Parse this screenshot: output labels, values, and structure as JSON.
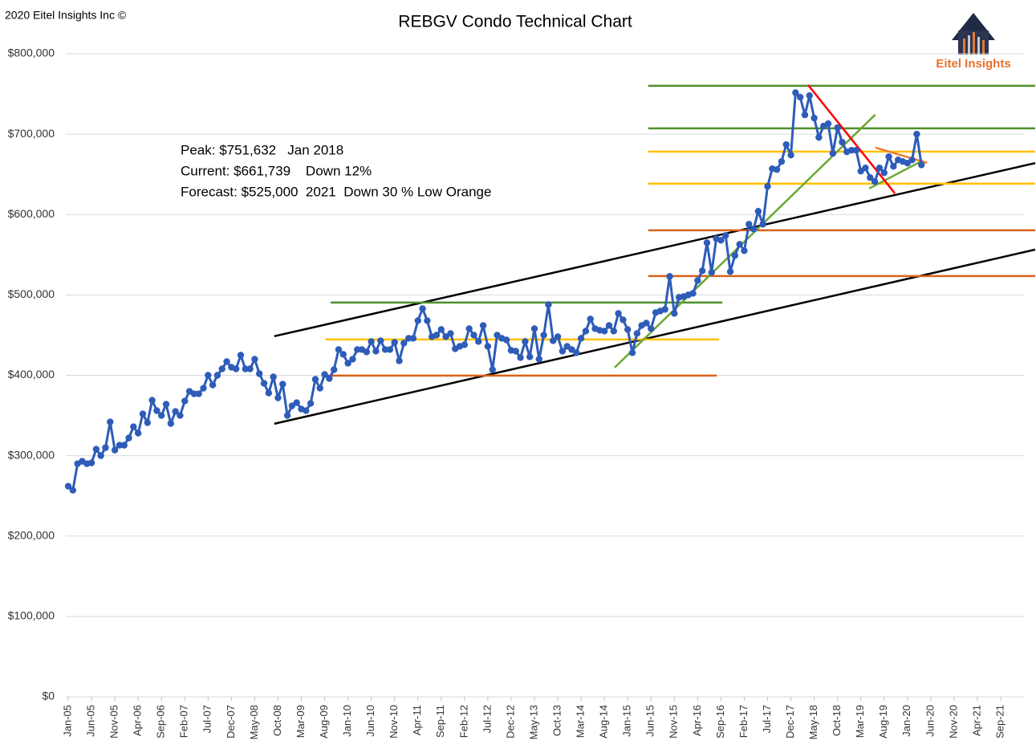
{
  "chart_data": {
    "type": "line",
    "title": "REBGV Condo Technical Chart",
    "copyright": "2020 Eitel Insights Inc ©",
    "brand": "Eitel Insights",
    "notes": [
      "Peak: $751,632   Jan 2018",
      "Current: $661,739    Down 12%",
      "Forecast: $525,000  2021  Down 30 % Low Orange"
    ],
    "categories": [
      "Jan-05",
      null,
      null,
      null,
      null,
      "Jun-05",
      null,
      null,
      null,
      null,
      "Nov-05",
      null,
      null,
      null,
      null,
      "Apr-06",
      null,
      null,
      null,
      null,
      "Sep-06",
      null,
      null,
      null,
      null,
      "Feb-07",
      null,
      null,
      null,
      null,
      "Jul-07",
      null,
      null,
      null,
      null,
      "Dec-07",
      null,
      null,
      null,
      null,
      "May-08",
      null,
      null,
      null,
      null,
      "Oct-08",
      null,
      null,
      null,
      null,
      "Mar-09",
      null,
      null,
      null,
      null,
      "Aug-09",
      null,
      null,
      null,
      null,
      "Jan-10",
      null,
      null,
      null,
      null,
      "Jun-10",
      null,
      null,
      null,
      null,
      "Nov-10",
      null,
      null,
      null,
      null,
      "Apr-11",
      null,
      null,
      null,
      null,
      "Sep-11",
      null,
      null,
      null,
      null,
      "Feb-12",
      null,
      null,
      null,
      null,
      "Jul-12",
      null,
      null,
      null,
      null,
      "Dec-12",
      null,
      null,
      null,
      null,
      "May-13",
      null,
      null,
      null,
      null,
      "Oct-13",
      null,
      null,
      null,
      null,
      "Mar-14",
      null,
      null,
      null,
      null,
      "Aug-14",
      null,
      null,
      null,
      null,
      "Jan-15",
      null,
      null,
      null,
      null,
      "Jun-15",
      null,
      null,
      null,
      null,
      "Nov-15",
      null,
      null,
      null,
      null,
      "Apr-16",
      null,
      null,
      null,
      null,
      "Sep-16",
      null,
      null,
      null,
      null,
      "Feb-17",
      null,
      null,
      null,
      null,
      "Jul-17",
      null,
      null,
      null,
      null,
      "Dec-17",
      null,
      null,
      null,
      null,
      "May-18",
      null,
      null,
      null,
      null,
      "Oct-18",
      null,
      null,
      null,
      null,
      "Mar-19",
      null,
      null,
      null,
      null,
      "Aug-19",
      null,
      null,
      null,
      null,
      "Jan-20",
      null,
      null,
      null,
      null,
      "Jun-20",
      null,
      null,
      null,
      null,
      "Nov-20",
      null,
      null,
      null,
      null,
      "Apr-21",
      null,
      null,
      null,
      null,
      "Sep-21",
      null,
      null,
      null,
      null,
      null
    ],
    "series": [
      {
        "color": "#2e5cb8",
        "values": [
          262000,
          257000,
          290000,
          293000,
          290000,
          291000,
          308000,
          300000,
          310000,
          342000,
          307000,
          313000,
          313000,
          322000,
          336000,
          328000,
          352000,
          341000,
          369000,
          356000,
          350000,
          364000,
          340000,
          355000,
          350000,
          368000,
          380000,
          377000,
          377000,
          384000,
          400000,
          388000,
          400000,
          408000,
          417000,
          410000,
          408000,
          425000,
          408000,
          408000,
          420000,
          402000,
          390000,
          378000,
          398000,
          372000,
          389000,
          350000,
          362000,
          366000,
          358000,
          356000,
          365000,
          395000,
          384000,
          401000,
          396000,
          407000,
          432000,
          426000,
          415000,
          420000,
          432000,
          432000,
          429000,
          442000,
          430000,
          443000,
          432000,
          432000,
          441000,
          418000,
          440000,
          446000,
          446000,
          468000,
          483000,
          468000,
          448000,
          450000,
          457000,
          448000,
          452000,
          433000,
          436000,
          438000,
          458000,
          450000,
          442000,
          462000,
          436000,
          407000,
          450000,
          446000,
          444000,
          431000,
          430000,
          422000,
          442000,
          423000,
          458000,
          420000,
          450000,
          488000,
          443000,
          448000,
          430000,
          436000,
          432000,
          428000,
          446000,
          455000,
          470000,
          458000,
          456000,
          455000,
          462000,
          455000,
          477000,
          469000,
          457000,
          428000,
          452000,
          462000,
          465000,
          458000,
          478000,
          480000,
          482000,
          523000,
          477000,
          497000,
          498000,
          500000,
          502000,
          518000,
          530000,
          565000,
          528000,
          570000,
          568000,
          574000,
          529000,
          549000,
          563000,
          555000,
          588000,
          582000,
          604000,
          588000,
          635000,
          657000,
          656000,
          666000,
          687000,
          674000,
          751632,
          746000,
          724000,
          748000,
          720000,
          696000,
          710000,
          713000,
          676000,
          708000,
          690000,
          678000,
          680000,
          680000,
          654000,
          658000,
          646000,
          641000,
          658000,
          652000,
          672000,
          660000,
          668000,
          666000,
          664000,
          668000,
          700000,
          661739,
          null,
          null,
          null,
          null,
          null,
          null,
          null,
          null,
          null,
          null,
          null,
          null,
          null,
          null,
          null,
          null,
          null,
          null,
          null,
          null,
          null,
          null
        ]
      }
    ],
    "reference_lines": [
      {
        "color": "#000000",
        "x": [
          44.2,
          207.4
        ],
        "y": [
          448600,
          664000
        ]
      },
      {
        "color": "#000000",
        "x": [
          44.2,
          207.4
        ],
        "y": [
          339700,
          556400
        ]
      },
      {
        "color": "#4e8f2a",
        "x": [
          56.3,
          140.3
        ],
        "y": [
          490500,
          490500
        ]
      },
      {
        "color": "#ffc000",
        "x": [
          55.2,
          139.6
        ],
        "y": [
          444600,
          444600
        ]
      },
      {
        "color": "#d9621b",
        "x": [
          55.2,
          139.1
        ],
        "y": [
          399600,
          399600
        ]
      },
      {
        "color": "#4e8f2a",
        "x": [
          124.4,
          207.4
        ],
        "y": [
          760200,
          760200
        ]
      },
      {
        "color": "#4e8f2a",
        "x": [
          124.4,
          207.4
        ],
        "y": [
          707300,
          707300
        ]
      },
      {
        "color": "#ffc000",
        "x": [
          124.4,
          207.4
        ],
        "y": [
          678300,
          678300
        ]
      },
      {
        "color": "#ffc000",
        "x": [
          124.4,
          207.4
        ],
        "y": [
          638400,
          638400
        ]
      },
      {
        "color": "#d9621b",
        "x": [
          124.4,
          207.4
        ],
        "y": [
          580400,
          580400
        ]
      },
      {
        "color": "#d9621b",
        "x": [
          124.4,
          207.4
        ],
        "y": [
          523500,
          523500
        ]
      },
      {
        "color": "#6aa832",
        "x": [
          117.2,
          173.1
        ],
        "y": [
          409600,
          724300
        ]
      },
      {
        "color": "#6aa832",
        "x": [
          171.8,
          183.3
        ],
        "y": [
          632400,
          667300
        ]
      },
      {
        "color": "#ff0000",
        "x": [
          158.7,
          177.3
        ],
        "y": [
          761200,
          626400
        ]
      },
      {
        "color": "#ed7d31",
        "x": [
          173.1,
          184.2
        ],
        "y": [
          683300,
          664300
        ]
      }
    ],
    "ylim": [
      0,
      800000
    ],
    "yticks": [
      {
        "value": 0,
        "label": "$0"
      },
      {
        "value": 100000,
        "label": "$100,000"
      },
      {
        "value": 200000,
        "label": "$200,000"
      },
      {
        "value": 300000,
        "label": "$300,000"
      },
      {
        "value": 400000,
        "label": "$400,000"
      },
      {
        "value": 500000,
        "label": "$500,000"
      },
      {
        "value": 600000,
        "label": "$600,000"
      },
      {
        "value": 700000,
        "label": "$700,000"
      },
      {
        "value": 800000,
        "label": "$800,000"
      }
    ],
    "grid": true
  }
}
